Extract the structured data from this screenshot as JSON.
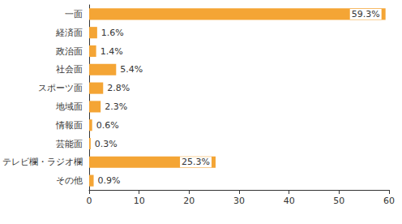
{
  "chart_data": {
    "type": "bar",
    "orientation": "horizontal",
    "categories": [
      "一面",
      "経済面",
      "政治面",
      "社会面",
      "スポーツ面",
      "地域面",
      "情報面",
      "芸能面",
      "テレビ欄・ラジオ欄",
      "その他"
    ],
    "values": [
      59.3,
      1.6,
      1.4,
      5.4,
      2.8,
      2.3,
      0.6,
      0.3,
      25.3,
      0.9
    ],
    "value_labels": [
      "59.3%",
      "1.6%",
      "1.4%",
      "5.4%",
      "2.8%",
      "2.3%",
      "0.6%",
      "0.3%",
      "25.3%",
      "0.9%"
    ],
    "color": "#f4a535",
    "data_labels": true,
    "xlim": [
      0,
      60
    ],
    "xticks": [
      0,
      10,
      20,
      30,
      40,
      50,
      60
    ],
    "grid": false
  }
}
